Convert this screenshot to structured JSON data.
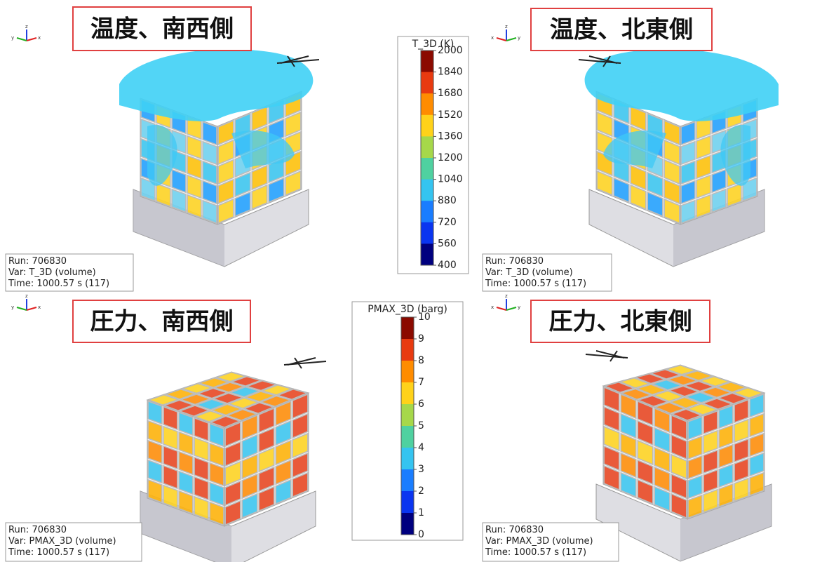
{
  "panels": [
    {
      "title": "温度、南西側",
      "triad": {
        "up": "z",
        "left": "y",
        "right": "x"
      },
      "info": [
        "Run: 706830",
        "Var: T_3D (volume)",
        "Time: 1000.57 s (117)"
      ]
    },
    {
      "title": "温度、北東側",
      "triad": {
        "up": "z",
        "left": "x",
        "right": "y"
      },
      "info": [
        "Run: 706830",
        "Var: T_3D (volume)",
        "Time: 1000.57 s (117)"
      ]
    },
    {
      "title": "圧力、南西側",
      "triad": {
        "up": "z",
        "left": "y",
        "right": "x"
      },
      "info": [
        "Run: 706830",
        "Var: PMAX_3D (volume)",
        "Time: 1000.57 s (117)"
      ]
    },
    {
      "title": "圧力、北東側",
      "triad": {
        "up": "z",
        "left": "x",
        "right": "y"
      },
      "info": [
        "Run: 706830",
        "Var: PMAX_3D (volume)",
        "Time: 1000.57 s (117)"
      ]
    }
  ],
  "colorbars": [
    {
      "title": "T_3D (K)",
      "ticks": [
        2000,
        1840,
        1680,
        1520,
        1360,
        1200,
        1040,
        880,
        720,
        560,
        400
      ],
      "colors": [
        "#8b0a00",
        "#e83a10",
        "#ff8c00",
        "#ffd21a",
        "#a6d84a",
        "#4fd1a0",
        "#35c4f0",
        "#1a7dff",
        "#0a35f0",
        "#00007f"
      ]
    },
    {
      "title": "PMAX_3D (barg)",
      "ticks": [
        10,
        9,
        8,
        7,
        6,
        5,
        4,
        3,
        2,
        1,
        0
      ],
      "colors": [
        "#8b0a00",
        "#e83a10",
        "#ff8c00",
        "#ffd21a",
        "#a6d84a",
        "#4fd1a0",
        "#35c4f0",
        "#1a7dff",
        "#0a35f0",
        "#00007f"
      ]
    }
  ]
}
